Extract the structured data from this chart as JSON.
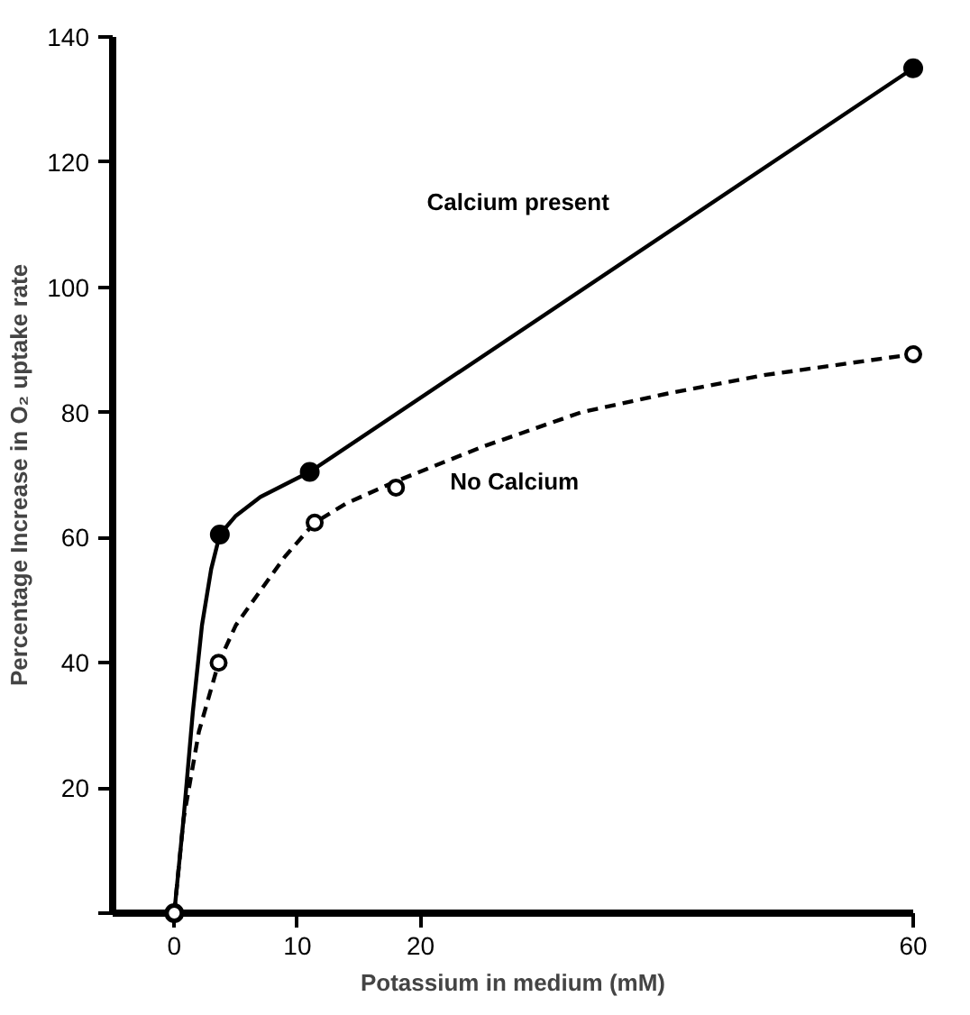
{
  "chart_data": {
    "type": "line",
    "xlabel": "Potassium in medium (mM)",
    "ylabel": "Percentage Increase in O₂ uptake rate",
    "xlim": [
      -5,
      60
    ],
    "ylim": [
      0,
      140
    ],
    "xticks": [
      0,
      10,
      20,
      60
    ],
    "yticks": [
      {
        "value": 0,
        "label": null
      },
      20,
      40,
      60,
      80,
      100,
      120,
      140
    ],
    "series": [
      {
        "name": "Calcium present",
        "color": "#000000",
        "line_style": "solid",
        "x": [
          0,
          0.75,
          1.5,
          2.25,
          3,
          3.7,
          5,
          7,
          11,
          60
        ],
        "values": [
          0,
          15,
          32,
          46,
          55,
          60.5,
          63.5,
          66.5,
          70.5,
          135
        ]
      },
      {
        "name": "No Calcium",
        "color": "#000000",
        "line_style": "dashed",
        "x": [
          0,
          0.75,
          2,
          3.6,
          5,
          6.8,
          9,
          11.4,
          14,
          18,
          25,
          33,
          40,
          48,
          60
        ],
        "values": [
          0,
          15,
          29,
          40,
          46,
          51,
          57,
          62.4,
          65.5,
          69,
          74.5,
          80,
          83,
          86,
          89.3
        ]
      },
      {
        "type": "scatter",
        "color": "#000000",
        "marker": "circle",
        "x": [
          0,
          3.7,
          11,
          60
        ],
        "values": [
          0,
          60.5,
          70.5,
          135
        ]
      },
      {
        "type": "scatter",
        "color": "#000000",
        "marker": "circle",
        "x": [
          0,
          3.6,
          11.4,
          18,
          60
        ],
        "values": [
          0,
          40,
          62.4,
          68,
          89.3
        ]
      }
    ]
  }
}
